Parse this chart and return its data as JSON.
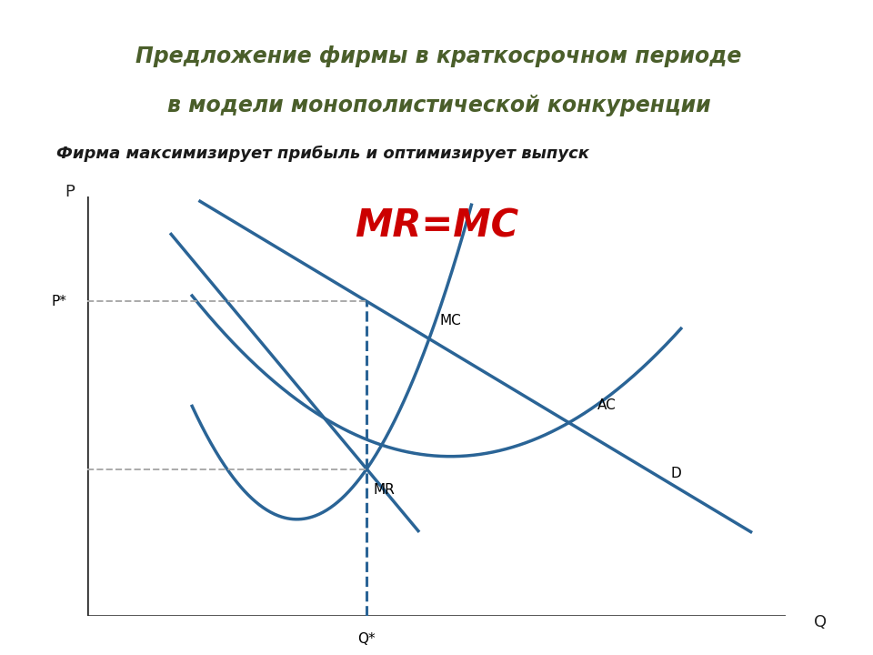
{
  "title_line1": "Предложение фирмы в краткосрочном периоде",
  "title_line2": "в модели монополистической конкуренции",
  "subtitle": "Фирма максимизирует прибыль и оптимизирует выпуск",
  "mr_mc_label": "MR=MC",
  "title_bg_color": "#dde5c8",
  "title_text_color": "#4a5e2a",
  "subtitle_text_color": "#1a1a1a",
  "mr_mc_color": "#cc0000",
  "curve_color": "#2a6496",
  "axis_color": "#222222",
  "dashed_color_h": "#aaaaaa",
  "dashed_color_v": "#2a6496",
  "label_MC": "MC",
  "label_AC": "AC",
  "label_D": "D",
  "label_MR": "MR",
  "label_P": "P",
  "label_Q": "Q",
  "label_Pstar": "P*",
  "label_Qstar": "Q*",
  "bg_color": "#ffffff",
  "xlim": [
    0,
    10
  ],
  "ylim": [
    0,
    10
  ],
  "A": 11.5,
  "B_D": 1.0,
  "q_star": 4.0,
  "p_star": 7.5,
  "mr_level": 3.5,
  "mc_a": 1.2,
  "mc_q0": 3.0,
  "mc_c": 3.5,
  "ac_a": 0.28,
  "ac_q0": 5.2,
  "ac_c": 3.8
}
